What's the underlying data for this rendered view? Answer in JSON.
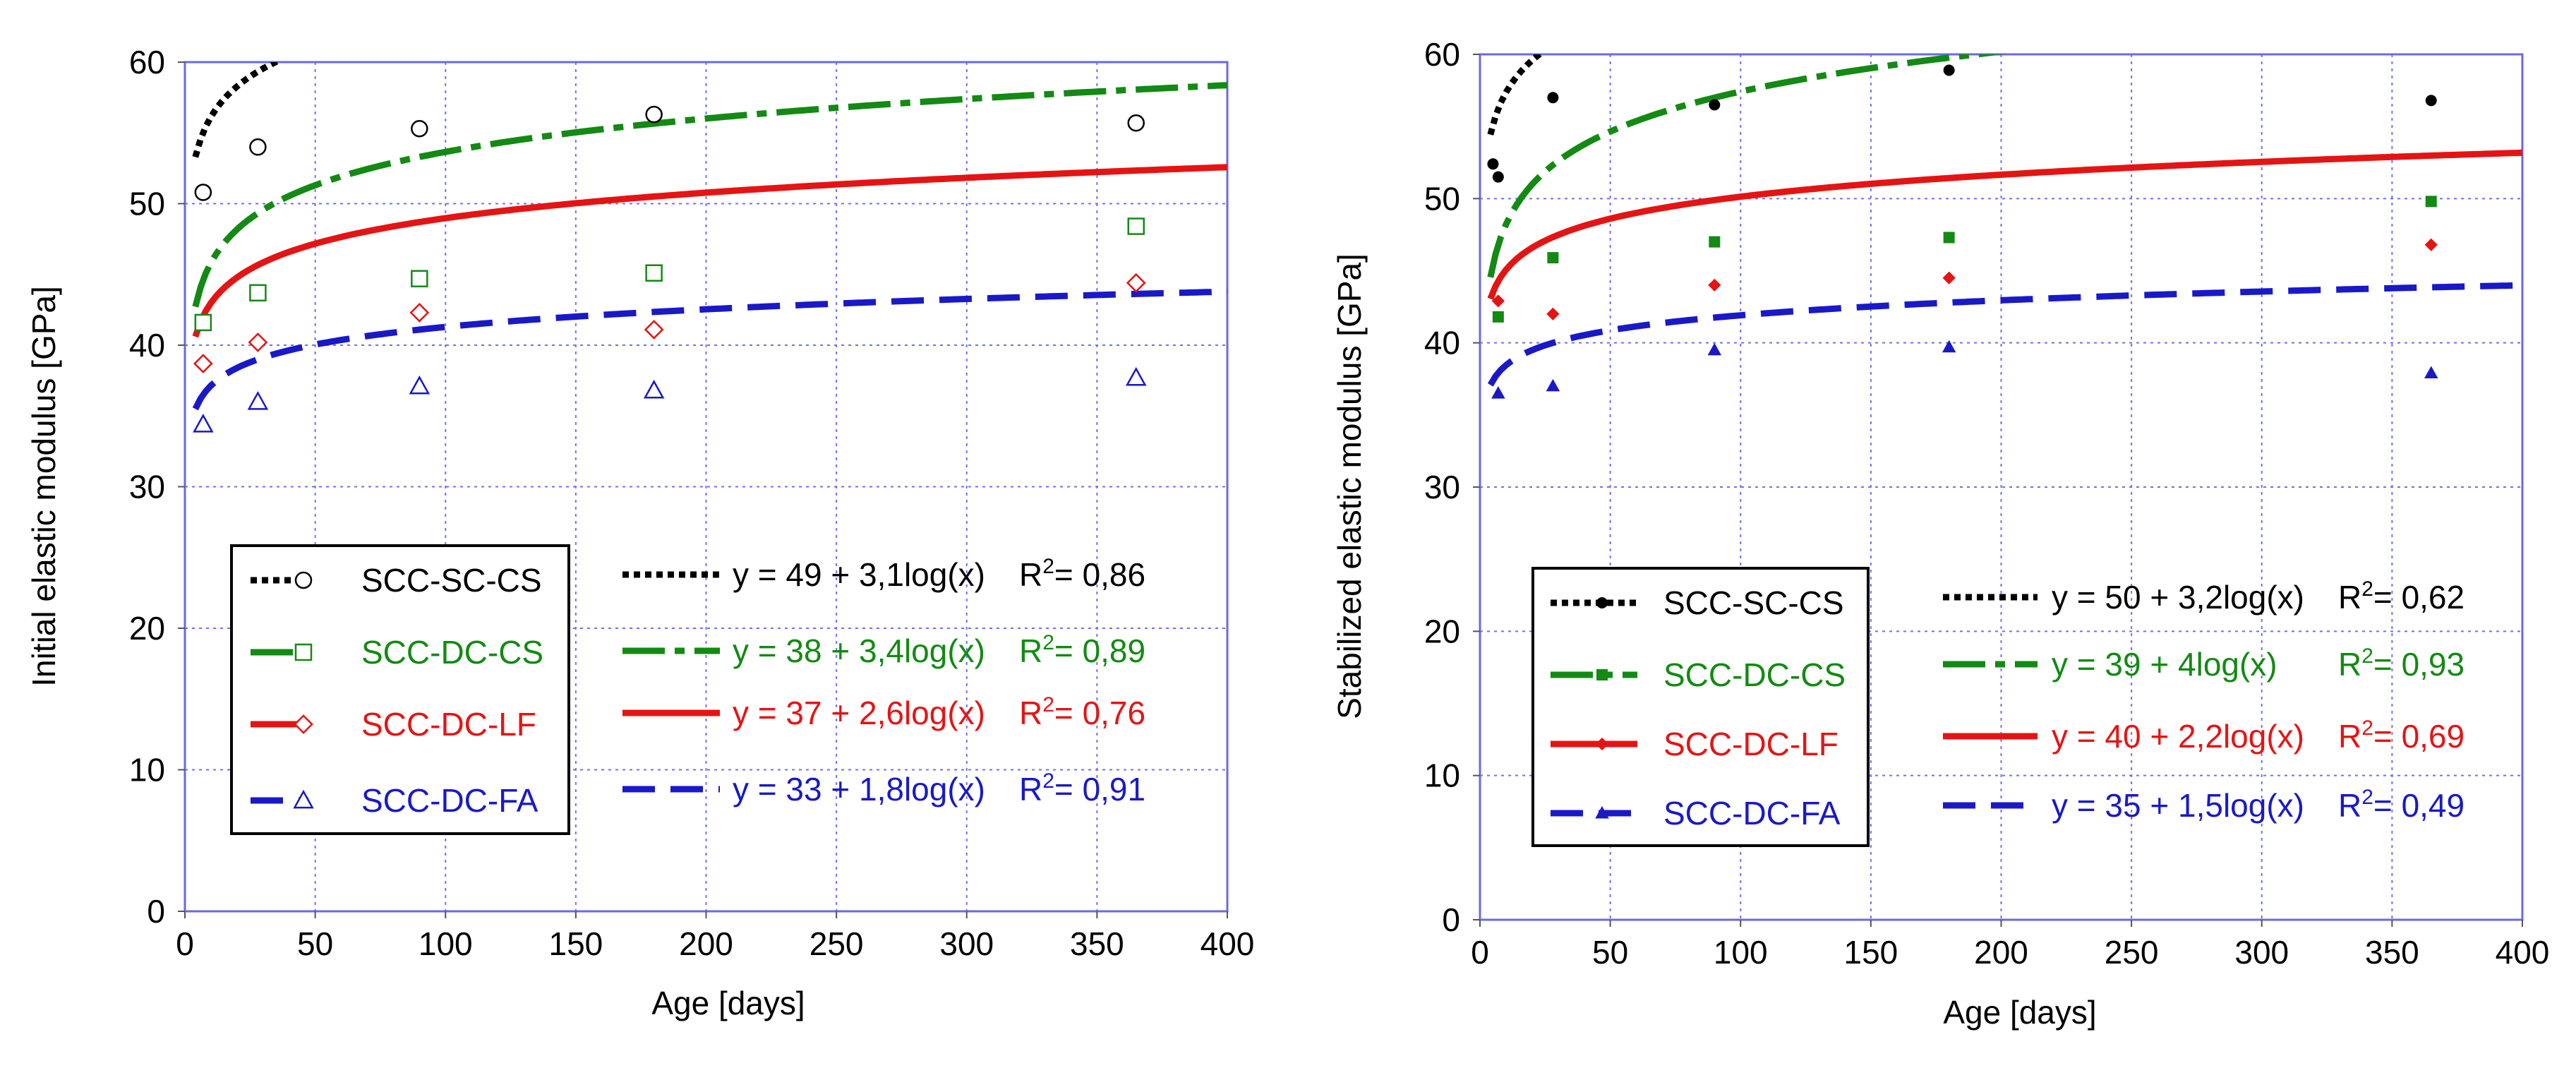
{
  "chart_data": [
    {
      "type": "scatter",
      "xlabel": "Age [days]",
      "ylabel": "Initial elastic modulus [GPa]",
      "xlim": [
        0,
        400
      ],
      "ylim": [
        0,
        60
      ],
      "xticks": [
        "0",
        "50",
        "100",
        "150",
        "200",
        "250",
        "300",
        "350",
        "400"
      ],
      "yticks": [
        "0",
        "10",
        "20",
        "30",
        "40",
        "50",
        "60"
      ],
      "grid": true,
      "marker_style": "hollow",
      "legend_placement": "bottom-left",
      "series": [
        {
          "name": "SCC-SC-CS",
          "color": "#000000",
          "marker": "circle",
          "x": [
            7,
            28,
            90,
            180,
            365
          ],
          "y": [
            50.8,
            54.0,
            55.3,
            56.3,
            55.7
          ],
          "fit": {
            "a": 49,
            "b": 3.1,
            "equation": "y = 49 + 3,1log(x)",
            "r2_prefix": "R",
            "r2_sup": "2",
            "r2_value": "= 0,86"
          }
        },
        {
          "name": "SCC-DC-CS",
          "color": "#138a13",
          "marker": "square",
          "x": [
            7,
            28,
            90,
            180,
            365
          ],
          "y": [
            41.6,
            43.7,
            44.7,
            45.1,
            48.4
          ],
          "fit": {
            "a": 38,
            "b": 3.4,
            "equation": "y = 38 + 3,4log(x)",
            "r2_prefix": "R",
            "r2_sup": "2",
            "r2_value": "= 0,89"
          }
        },
        {
          "name": "SCC-DC-LF",
          "color": "#e51414",
          "marker": "diamond",
          "x": [
            7,
            28,
            90,
            180,
            365
          ],
          "y": [
            38.7,
            40.2,
            42.3,
            41.1,
            44.4
          ],
          "fit": {
            "a": 37,
            "b": 2.6,
            "equation": "y = 37 + 2,6log(x)",
            "r2_prefix": "R",
            "r2_sup": "2",
            "r2_value": "= 0,76"
          }
        },
        {
          "name": "SCC-DC-FA",
          "color": "#1919c8",
          "marker": "triangle",
          "x": [
            7,
            28,
            90,
            180,
            365
          ],
          "y": [
            34.4,
            36.0,
            37.1,
            36.8,
            37.7
          ],
          "fit": {
            "a": 33,
            "b": 1.8,
            "equation": "y = 33 + 1,8log(x)",
            "r2_prefix": "R",
            "r2_sup": "2",
            "r2_value": "= 0,91"
          }
        }
      ]
    },
    {
      "type": "scatter",
      "xlabel": "Age [days]",
      "ylabel": "Stabilized elastic modulus [GPa]",
      "xlim": [
        0,
        400
      ],
      "ylim": [
        0,
        60
      ],
      "xticks": [
        "0",
        "50",
        "100",
        "150",
        "200",
        "250",
        "300",
        "350",
        "400"
      ],
      "yticks": [
        "0",
        "10",
        "20",
        "30",
        "40",
        "50",
        "60"
      ],
      "grid": true,
      "marker_style": "filled",
      "legend_placement": "bottom-left",
      "series": [
        {
          "name": "SCC-SC-CS",
          "color": "#000000",
          "marker": "circle",
          "x": [
            5,
            7,
            28,
            90,
            180,
            365
          ],
          "y": [
            52.4,
            51.5,
            57.0,
            56.5,
            58.9,
            56.8
          ],
          "fit": {
            "a": 50,
            "b": 3.2,
            "equation": "y = 50 + 3,2log(x)",
            "r2_prefix": "R",
            "r2_sup": "2",
            "r2_value": "= 0,62"
          }
        },
        {
          "name": "SCC-DC-CS",
          "color": "#138a13",
          "marker": "square",
          "x": [
            7,
            28,
            90,
            180,
            365
          ],
          "y": [
            41.8,
            45.9,
            47.0,
            47.3,
            49.8
          ],
          "fit": {
            "a": 39,
            "b": 4,
            "equation": "y = 39 + 4log(x)",
            "r2_prefix": "R",
            "r2_sup": "2",
            "r2_value": "= 0,93"
          }
        },
        {
          "name": "SCC-DC-LF",
          "color": "#e51414",
          "marker": "diamond",
          "x": [
            7,
            28,
            90,
            180,
            365
          ],
          "y": [
            42.9,
            42.0,
            44.0,
            44.5,
            46.8
          ],
          "fit": {
            "a": 40,
            "b": 2.2,
            "equation": "y = 40 + 2,2log(x)",
            "r2_prefix": "R",
            "r2_sup": "2",
            "r2_value": "= 0,69"
          }
        },
        {
          "name": "SCC-DC-FA",
          "color": "#1919c8",
          "marker": "triangle",
          "x": [
            7,
            28,
            90,
            180,
            365
          ],
          "y": [
            36.5,
            37.0,
            39.5,
            39.7,
            37.9
          ],
          "fit": {
            "a": 35,
            "b": 1.5,
            "equation": "y = 35 + 1,5log(x)",
            "r2_prefix": "R",
            "r2_sup": "2",
            "r2_value": "= 0,49"
          }
        }
      ]
    }
  ]
}
